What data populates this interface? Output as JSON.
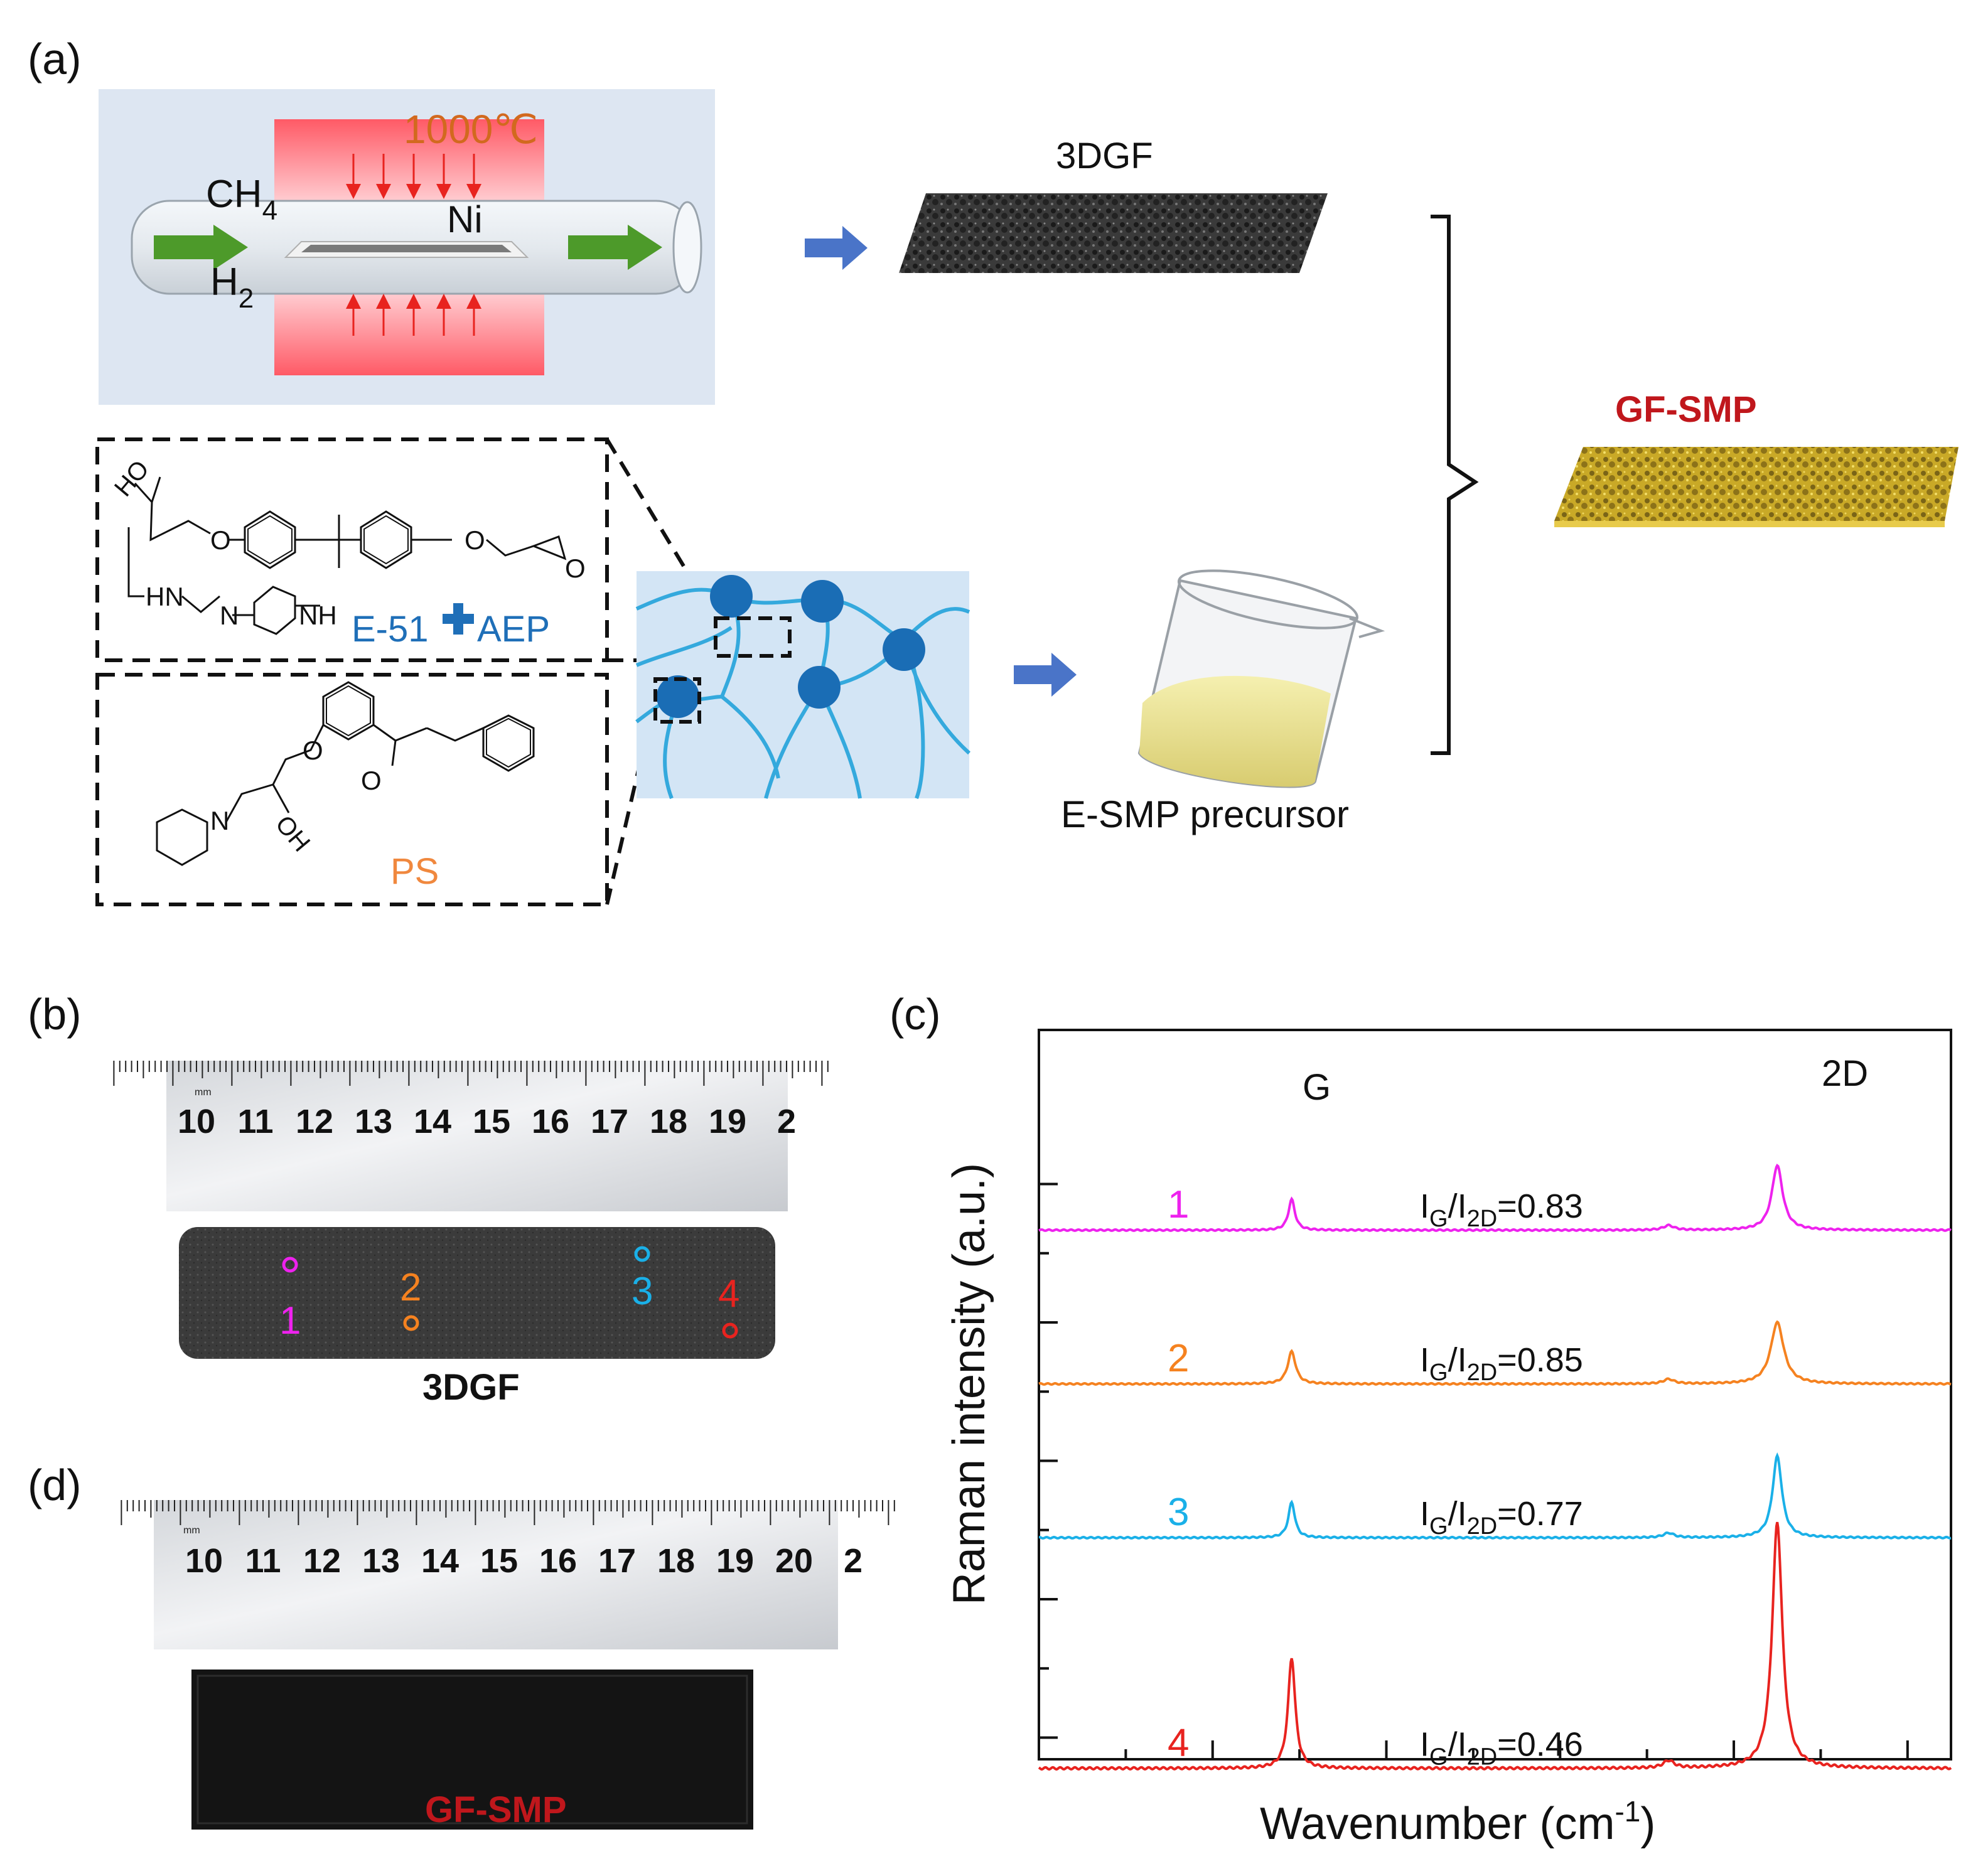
{
  "panel_labels": {
    "a": "(a)",
    "b": "(b)",
    "c": "(c)",
    "d": "(d)"
  },
  "cvd": {
    "temperature": "1000℃",
    "gas1": "CH",
    "gas1_sub": "4",
    "gas2": "H",
    "gas2_sub": "2",
    "substrate": "Ni"
  },
  "products": {
    "foam": "3DGF",
    "composite": "GF-SMP",
    "precursor": "E-SMP precursor"
  },
  "chemistry": {
    "ho_label": "HO",
    "o_label": "O",
    "hn_label": "HN",
    "n_label": "N",
    "nh_label": "NH",
    "oh_label": "OH",
    "epoxy": "E-51",
    "hardener": "AEP",
    "photo": "PS"
  },
  "photos": {
    "ruler_b_ticks": [
      "10",
      "11",
      "12",
      "13",
      "14",
      "15",
      "16",
      "17",
      "18",
      "19",
      "2"
    ],
    "ruler_d_ticks": [
      "10",
      "11",
      "12",
      "13",
      "14",
      "15",
      "16",
      "17",
      "18",
      "19",
      "20",
      "2"
    ],
    "ruler_unit": "mm",
    "sample_b": "3DGF",
    "sample_d": "GF-SMP",
    "spots": [
      "1",
      "2",
      "3",
      "4"
    ]
  },
  "colors": {
    "s1": "#ee22ee",
    "s2": "#f58220",
    "s3": "#1ab0e8",
    "s4": "#e8231f",
    "accent_red": "#c0171c",
    "blue": "#1f6fb8",
    "orange": "#f0883e"
  },
  "chart_data": {
    "type": "line",
    "title": "",
    "xlabel": "Wavenumber (cm",
    "xlabel_sup": "-1",
    "xlabel_end": ")",
    "ylabel": "Raman intensity (a.u.)",
    "x_ticks": [],
    "y_ticks": [],
    "xlim": [
      1000,
      3100
    ],
    "peaks": {
      "G": "G",
      "D2": "2D"
    },
    "series": [
      {
        "name": "1",
        "color": "#ee22ee",
        "ratio_text": "=0.83",
        "ratio": 0.83,
        "offset": 3.0,
        "g_amp": 0.2,
        "d2_amp": 0.42,
        "g_width": 9,
        "d2_width": 15
      },
      {
        "name": "2",
        "color": "#f58220",
        "ratio_text": "=0.85",
        "ratio": 0.85,
        "offset": 2.0,
        "g_amp": 0.21,
        "d2_amp": 0.4,
        "g_width": 11,
        "d2_width": 18
      },
      {
        "name": "3",
        "color": "#1ab0e8",
        "ratio_text": "=0.77",
        "ratio": 0.77,
        "offset": 1.0,
        "g_amp": 0.23,
        "d2_amp": 0.53,
        "g_width": 9,
        "d2_width": 13
      },
      {
        "name": "4",
        "color": "#e8231f",
        "ratio_text": "=0.46",
        "ratio": 0.46,
        "offset": -0.5,
        "g_amp": 0.45,
        "d2_amp": 1.0,
        "g_width": 10,
        "d2_width": 14
      }
    ],
    "ratio_prefix_i": "I",
    "ratio_sub_g": "G",
    "ratio_slash": "/I",
    "ratio_sub_2d": "2D"
  }
}
